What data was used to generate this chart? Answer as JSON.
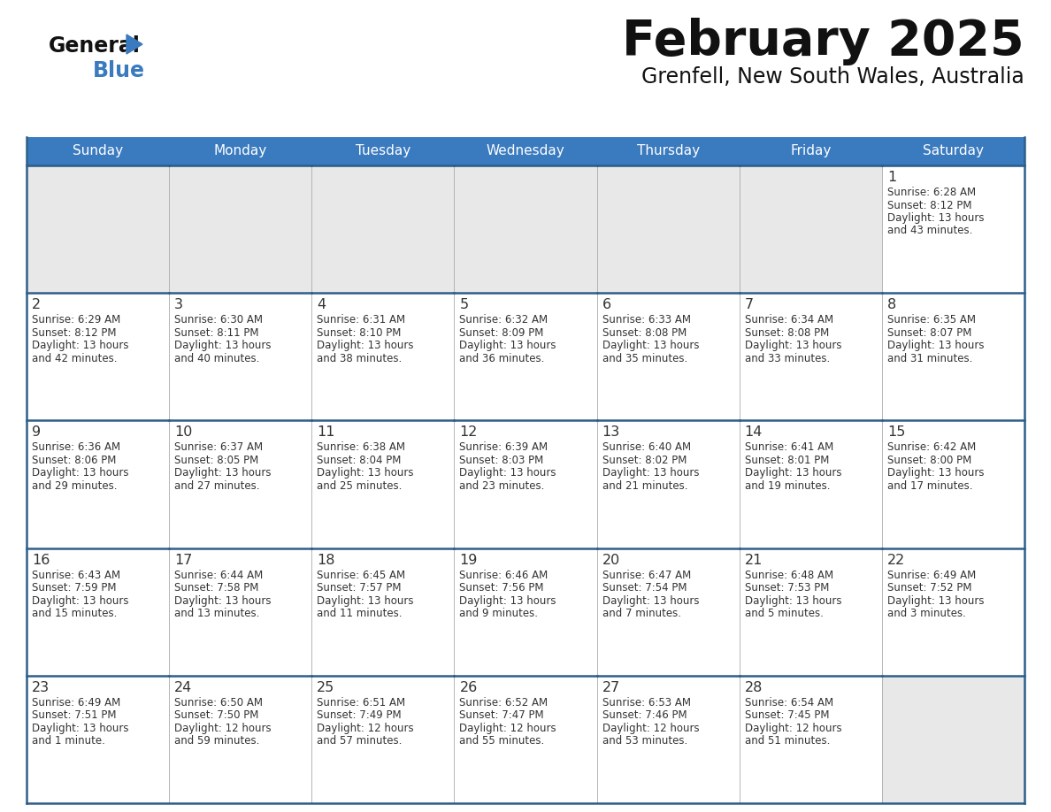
{
  "title": "February 2025",
  "subtitle": "Grenfell, New South Wales, Australia",
  "header_color": "#3a7abf",
  "header_text_color": "#ffffff",
  "day_names": [
    "Sunday",
    "Monday",
    "Tuesday",
    "Wednesday",
    "Thursday",
    "Friday",
    "Saturday"
  ],
  "bg_color": "#e8e8e8",
  "cell_bg": "#ffffff",
  "border_color": "#2e5f8a",
  "num_color": "#333333",
  "text_color": "#333333",
  "title_color": "#111111",
  "weeks": [
    [
      {
        "day": null,
        "info": null
      },
      {
        "day": null,
        "info": null
      },
      {
        "day": null,
        "info": null
      },
      {
        "day": null,
        "info": null
      },
      {
        "day": null,
        "info": null
      },
      {
        "day": null,
        "info": null
      },
      {
        "day": 1,
        "info": "Sunrise: 6:28 AM\nSunset: 8:12 PM\nDaylight: 13 hours\nand 43 minutes."
      }
    ],
    [
      {
        "day": 2,
        "info": "Sunrise: 6:29 AM\nSunset: 8:12 PM\nDaylight: 13 hours\nand 42 minutes."
      },
      {
        "day": 3,
        "info": "Sunrise: 6:30 AM\nSunset: 8:11 PM\nDaylight: 13 hours\nand 40 minutes."
      },
      {
        "day": 4,
        "info": "Sunrise: 6:31 AM\nSunset: 8:10 PM\nDaylight: 13 hours\nand 38 minutes."
      },
      {
        "day": 5,
        "info": "Sunrise: 6:32 AM\nSunset: 8:09 PM\nDaylight: 13 hours\nand 36 minutes."
      },
      {
        "day": 6,
        "info": "Sunrise: 6:33 AM\nSunset: 8:08 PM\nDaylight: 13 hours\nand 35 minutes."
      },
      {
        "day": 7,
        "info": "Sunrise: 6:34 AM\nSunset: 8:08 PM\nDaylight: 13 hours\nand 33 minutes."
      },
      {
        "day": 8,
        "info": "Sunrise: 6:35 AM\nSunset: 8:07 PM\nDaylight: 13 hours\nand 31 minutes."
      }
    ],
    [
      {
        "day": 9,
        "info": "Sunrise: 6:36 AM\nSunset: 8:06 PM\nDaylight: 13 hours\nand 29 minutes."
      },
      {
        "day": 10,
        "info": "Sunrise: 6:37 AM\nSunset: 8:05 PM\nDaylight: 13 hours\nand 27 minutes."
      },
      {
        "day": 11,
        "info": "Sunrise: 6:38 AM\nSunset: 8:04 PM\nDaylight: 13 hours\nand 25 minutes."
      },
      {
        "day": 12,
        "info": "Sunrise: 6:39 AM\nSunset: 8:03 PM\nDaylight: 13 hours\nand 23 minutes."
      },
      {
        "day": 13,
        "info": "Sunrise: 6:40 AM\nSunset: 8:02 PM\nDaylight: 13 hours\nand 21 minutes."
      },
      {
        "day": 14,
        "info": "Sunrise: 6:41 AM\nSunset: 8:01 PM\nDaylight: 13 hours\nand 19 minutes."
      },
      {
        "day": 15,
        "info": "Sunrise: 6:42 AM\nSunset: 8:00 PM\nDaylight: 13 hours\nand 17 minutes."
      }
    ],
    [
      {
        "day": 16,
        "info": "Sunrise: 6:43 AM\nSunset: 7:59 PM\nDaylight: 13 hours\nand 15 minutes."
      },
      {
        "day": 17,
        "info": "Sunrise: 6:44 AM\nSunset: 7:58 PM\nDaylight: 13 hours\nand 13 minutes."
      },
      {
        "day": 18,
        "info": "Sunrise: 6:45 AM\nSunset: 7:57 PM\nDaylight: 13 hours\nand 11 minutes."
      },
      {
        "day": 19,
        "info": "Sunrise: 6:46 AM\nSunset: 7:56 PM\nDaylight: 13 hours\nand 9 minutes."
      },
      {
        "day": 20,
        "info": "Sunrise: 6:47 AM\nSunset: 7:54 PM\nDaylight: 13 hours\nand 7 minutes."
      },
      {
        "day": 21,
        "info": "Sunrise: 6:48 AM\nSunset: 7:53 PM\nDaylight: 13 hours\nand 5 minutes."
      },
      {
        "day": 22,
        "info": "Sunrise: 6:49 AM\nSunset: 7:52 PM\nDaylight: 13 hours\nand 3 minutes."
      }
    ],
    [
      {
        "day": 23,
        "info": "Sunrise: 6:49 AM\nSunset: 7:51 PM\nDaylight: 13 hours\nand 1 minute."
      },
      {
        "day": 24,
        "info": "Sunrise: 6:50 AM\nSunset: 7:50 PM\nDaylight: 12 hours\nand 59 minutes."
      },
      {
        "day": 25,
        "info": "Sunrise: 6:51 AM\nSunset: 7:49 PM\nDaylight: 12 hours\nand 57 minutes."
      },
      {
        "day": 26,
        "info": "Sunrise: 6:52 AM\nSunset: 7:47 PM\nDaylight: 12 hours\nand 55 minutes."
      },
      {
        "day": 27,
        "info": "Sunrise: 6:53 AM\nSunset: 7:46 PM\nDaylight: 12 hours\nand 53 minutes."
      },
      {
        "day": 28,
        "info": "Sunrise: 6:54 AM\nSunset: 7:45 PM\nDaylight: 12 hours\nand 51 minutes."
      },
      {
        "day": null,
        "info": null
      }
    ]
  ]
}
